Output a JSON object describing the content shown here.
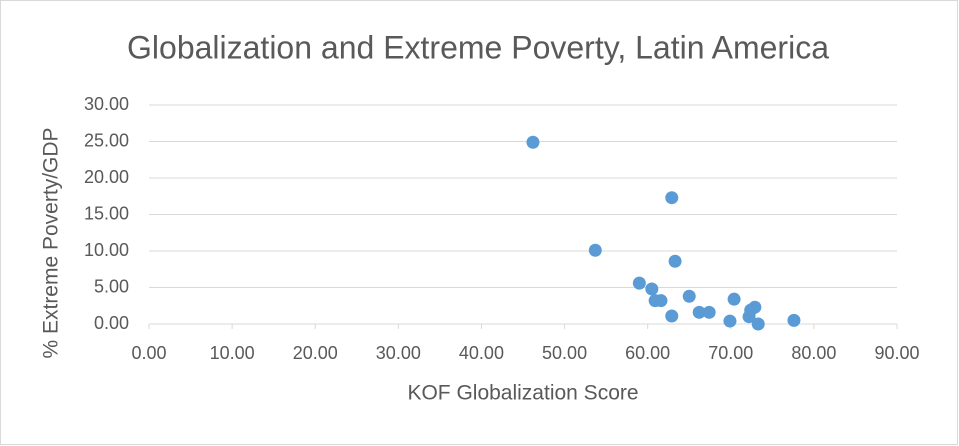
{
  "chart_data": {
    "type": "scatter",
    "title": "Globalization and Extreme Poverty, Latin America",
    "x_label": "KOF Globalization Score",
    "y_label": "% Extreme Poverty/GDP",
    "series": [
      {
        "color": "#5b9bd5",
        "x": [
          46.2,
          62.9,
          53.7,
          63.3,
          59.0,
          60.5,
          65.0,
          70.4,
          60.9,
          61.6,
          72.9,
          72.4,
          66.2,
          67.4,
          62.9,
          72.2,
          69.9,
          77.6,
          73.3
        ],
        "values": [
          24.9,
          17.3,
          10.1,
          8.6,
          5.6,
          4.8,
          3.8,
          3.4,
          3.2,
          3.2,
          2.3,
          1.9,
          1.6,
          1.6,
          1.1,
          1.0,
          0.4,
          0.5,
          0.0
        ]
      }
    ],
    "xlim": [
      0,
      90
    ],
    "xticks": [
      {
        "value": 0,
        "label": "0.00"
      },
      {
        "value": 10,
        "label": "10.00"
      },
      {
        "value": 20,
        "label": "20.00"
      },
      {
        "value": 30,
        "label": "30.00"
      },
      {
        "value": 40,
        "label": "40.00"
      },
      {
        "value": 50,
        "label": "50.00"
      },
      {
        "value": 60,
        "label": "60.00"
      },
      {
        "value": 70,
        "label": "70.00"
      },
      {
        "value": 80,
        "label": "80.00"
      },
      {
        "value": 90,
        "label": "90.00"
      }
    ],
    "ylim": [
      0,
      30
    ],
    "yticks": [
      {
        "value": 0,
        "label": "0.00"
      },
      {
        "value": 5,
        "label": "5.00"
      },
      {
        "value": 10,
        "label": "10.00"
      },
      {
        "value": 15,
        "label": "15.00"
      },
      {
        "value": 20,
        "label": "20.00"
      },
      {
        "value": 25,
        "label": "25.00"
      },
      {
        "value": 30,
        "label": "30.00"
      }
    ],
    "grid": true
  }
}
